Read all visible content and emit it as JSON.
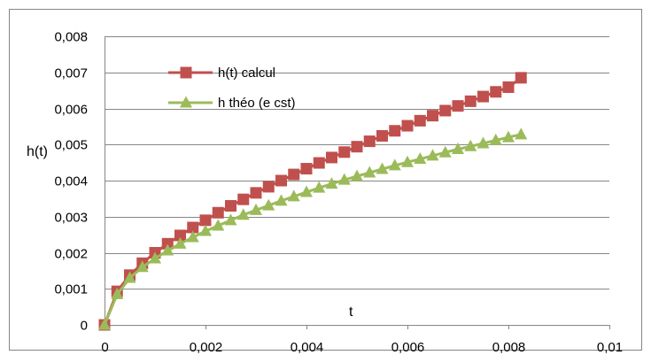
{
  "chart_data": {
    "type": "line",
    "xlabel": "t",
    "ylabel": "h(t)",
    "xlim": [
      0,
      0.01
    ],
    "ylim": [
      0,
      0.008
    ],
    "x_ticks": [
      "0",
      "0,002",
      "0,004",
      "0,006",
      "0,008",
      "0,01"
    ],
    "y_ticks": [
      "0",
      "0,001",
      "0,002",
      "0,003",
      "0,004",
      "0,005",
      "0,006",
      "0,007",
      "0,008"
    ],
    "grid": "horizontal",
    "legend_position": "top-left",
    "x": [
      0,
      0.00025,
      0.0005,
      0.00075,
      0.001,
      0.00125,
      0.0015,
      0.00175,
      0.002,
      0.00225,
      0.0025,
      0.00275,
      0.003,
      0.00325,
      0.0035,
      0.00375,
      0.004,
      0.00425,
      0.0045,
      0.00475,
      0.005,
      0.00525,
      0.0055,
      0.00575,
      0.006,
      0.00625,
      0.0065,
      0.00675,
      0.007,
      0.00725,
      0.0075,
      0.00775,
      0.008,
      0.00825
    ],
    "series": [
      {
        "name": "h(t) calcul",
        "color": "#c0504d",
        "marker": "square",
        "values": [
          0,
          0.00093,
          0.00138,
          0.00171,
          0.002,
          0.00225,
          0.00248,
          0.0027,
          0.0029,
          0.00311,
          0.0033,
          0.00348,
          0.00366,
          0.00383,
          0.004,
          0.00417,
          0.00433,
          0.00449,
          0.00464,
          0.00479,
          0.00494,
          0.00509,
          0.00524,
          0.00538,
          0.00552,
          0.00566,
          0.0058,
          0.00594,
          0.00607,
          0.0062,
          0.00633,
          0.00646,
          0.00659,
          0.00685
        ]
      },
      {
        "name": "h théo (e cst)",
        "color": "#9bbb59",
        "marker": "triangle",
        "values": [
          0,
          0.00085,
          0.0013,
          0.0016,
          0.00184,
          0.00206,
          0.00225,
          0.00243,
          0.0026,
          0.00275,
          0.0029,
          0.00305,
          0.00318,
          0.00331,
          0.00344,
          0.00356,
          0.00368,
          0.0038,
          0.00391,
          0.00402,
          0.00412,
          0.00422,
          0.00432,
          0.00442,
          0.00451,
          0.0046,
          0.00469,
          0.00478,
          0.00487,
          0.00495,
          0.00503,
          0.00512,
          0.0052,
          0.00528
        ]
      }
    ]
  }
}
